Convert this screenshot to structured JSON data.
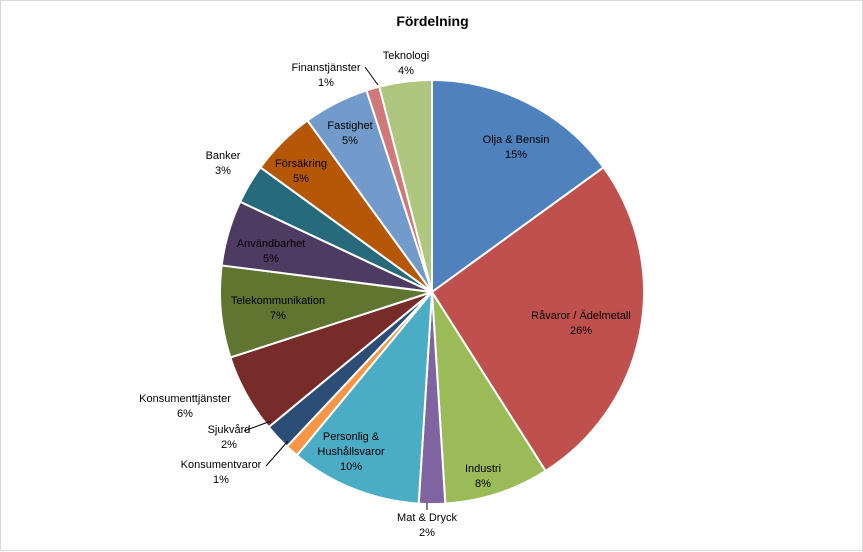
{
  "chart_data": {
    "type": "pie",
    "title": "Fördelning",
    "slices": [
      {
        "label": "Olja & Bensin",
        "value": 15,
        "pct": "15%",
        "color": "#4F81BD",
        "inside": true
      },
      {
        "label": "Råvaror / Ädelmetall",
        "value": 26,
        "pct": "26%",
        "color": "#C0504D",
        "inside": true
      },
      {
        "label": "Industri",
        "value": 8,
        "pct": "8%",
        "color": "#9BBB59",
        "inside": true
      },
      {
        "label": "Mat & Dryck",
        "value": 2,
        "pct": "2%",
        "color": "#8064A2",
        "inside": false
      },
      {
        "label": "Personlig & Hushållsvaror",
        "value": 10,
        "pct": "10%",
        "color": "#4BACC6",
        "inside": true
      },
      {
        "label": "Konsumentvaror",
        "value": 1,
        "pct": "1%",
        "color": "#F79646",
        "inside": false
      },
      {
        "label": "Sjukvård",
        "value": 2,
        "pct": "2%",
        "color": "#2C4D75",
        "inside": false
      },
      {
        "label": "Konsumenttjänster",
        "value": 6,
        "pct": "6%",
        "color": "#772C2A",
        "inside": false
      },
      {
        "label": "Telekommunikation",
        "value": 7,
        "pct": "7%",
        "color": "#5F7530",
        "inside": true
      },
      {
        "label": "Användbarhet",
        "value": 5,
        "pct": "5%",
        "color": "#4D3B62",
        "inside": true
      },
      {
        "label": "Banker",
        "value": 3,
        "pct": "3%",
        "color": "#276A7C",
        "inside": false
      },
      {
        "label": "Försäkring",
        "value": 5,
        "pct": "5%",
        "color": "#B65708",
        "inside": true
      },
      {
        "label": "Fastighet",
        "value": 5,
        "pct": "5%",
        "color": "#729ACA",
        "inside": true
      },
      {
        "label": "Finanstjänster",
        "value": 1,
        "pct": "1%",
        "color": "#D0787A",
        "inside": false
      },
      {
        "label": "Teknologi",
        "value": 4,
        "pct": "4%",
        "color": "#AEC67E",
        "inside": false
      }
    ]
  }
}
